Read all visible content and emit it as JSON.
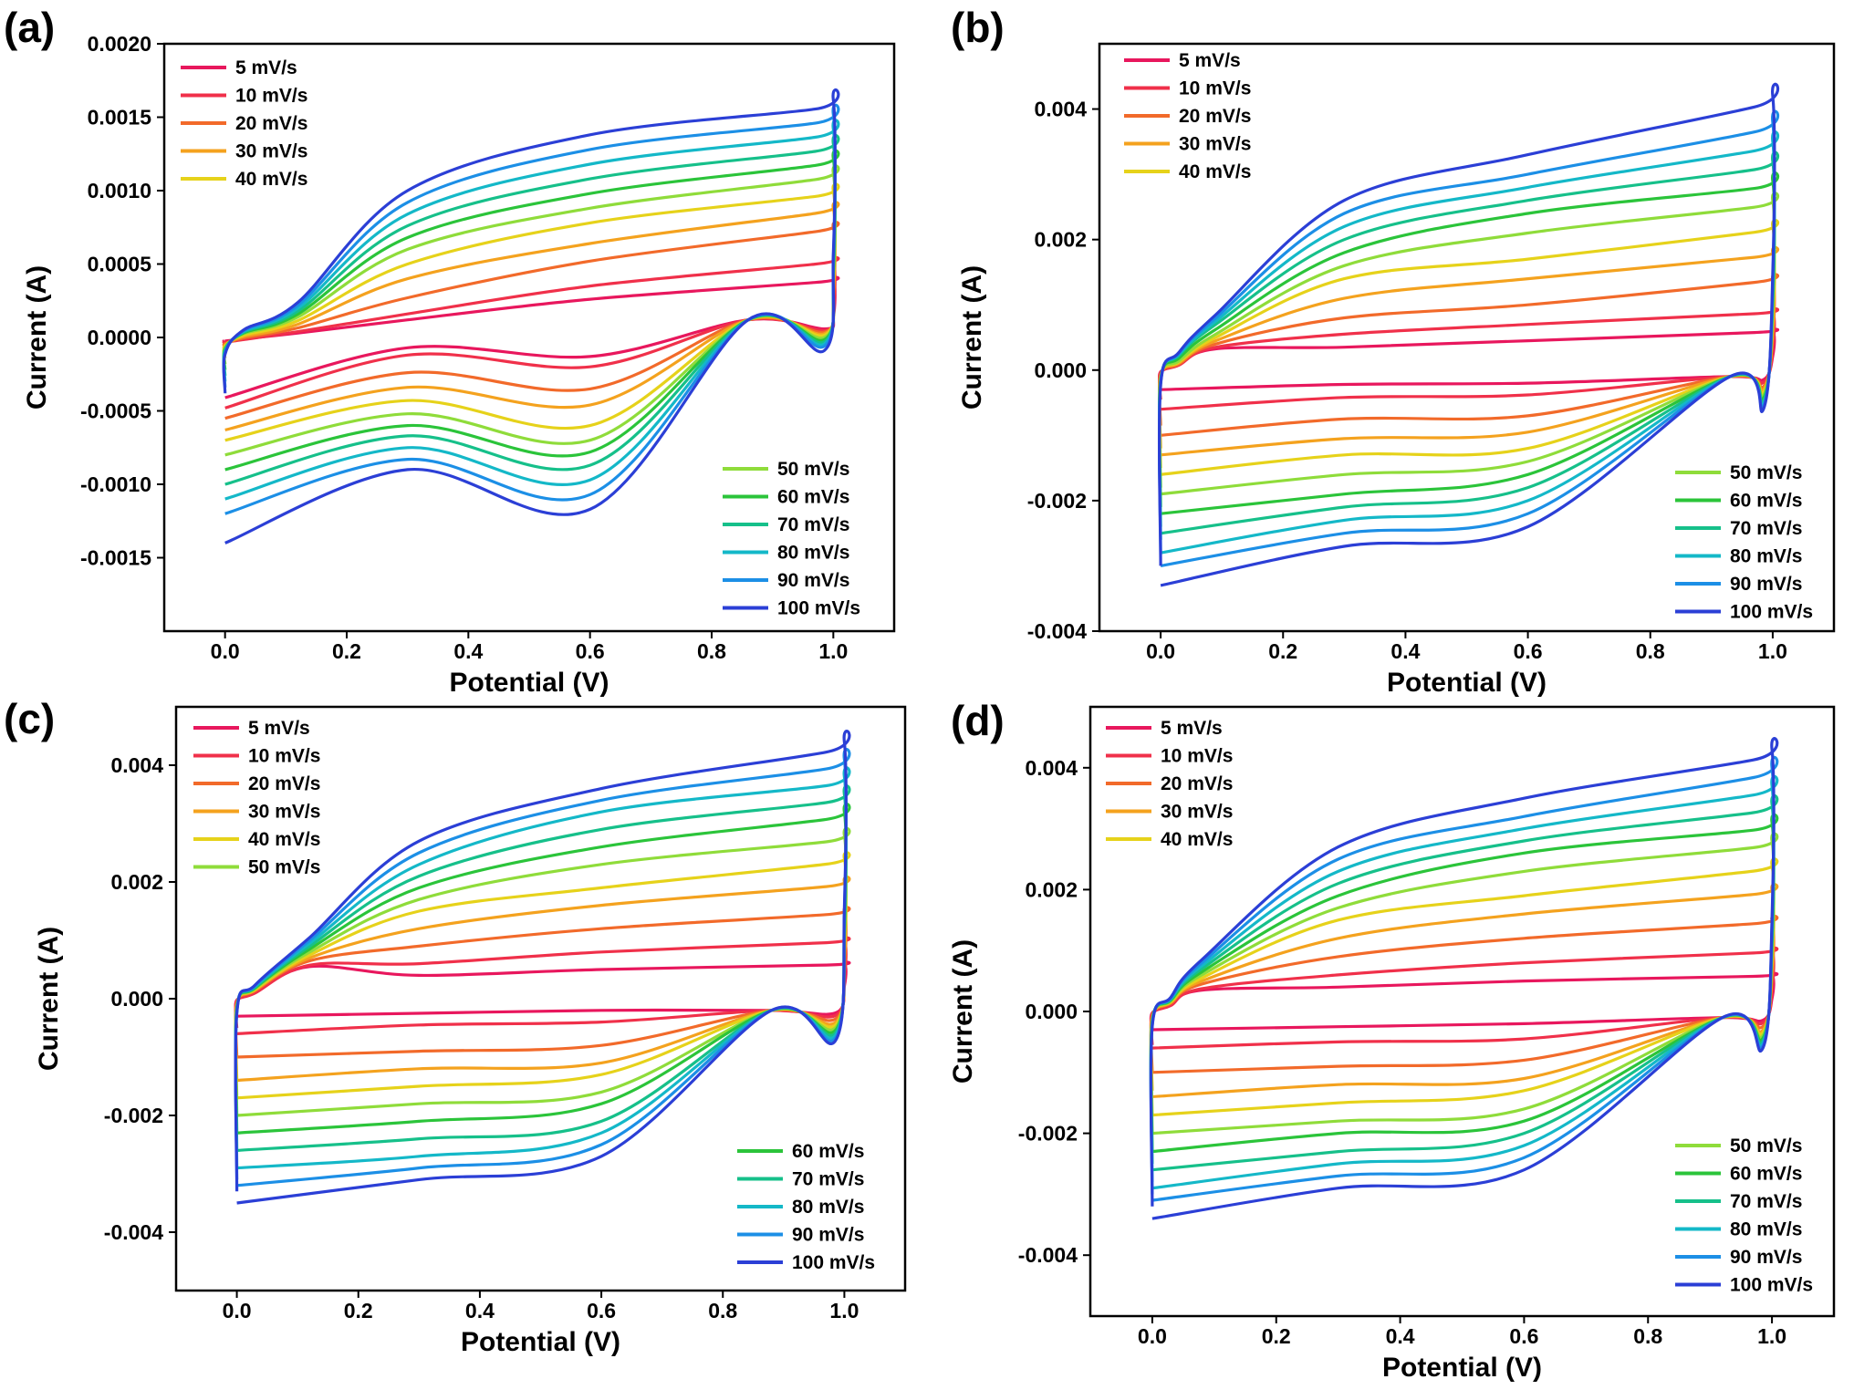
{
  "figure": {
    "panel_count": 4
  },
  "chart_data": [
    {
      "panel": "(a)",
      "type": "line",
      "title": "",
      "xlabel": "Potential (V)",
      "ylabel": "Current (A)",
      "xlim": [
        -0.1,
        1.1
      ],
      "ylim": [
        -0.002,
        0.002
      ],
      "xticks": [
        0.0,
        0.2,
        0.4,
        0.6,
        0.8,
        1.0
      ],
      "xtick_labels": [
        "0.0",
        "0.2",
        "0.4",
        "0.6",
        "0.8",
        "1.0"
      ],
      "yticks": [
        0.002,
        0.0015,
        0.001,
        0.0005,
        0.0,
        -0.0005,
        -0.001,
        -0.0015
      ],
      "ytick_labels": [
        "0.0020",
        "0.0015",
        "0.0010",
        "0.0005",
        "0.0000",
        "-0.0005",
        "-0.0010",
        "-0.0015"
      ],
      "legend_split": 5,
      "legend_placement": [
        "top-left",
        "bottom-right"
      ],
      "grid": false,
      "cross_points": {
        "x_low": 0.12,
        "y_low": 0.0,
        "x_high": 0.86,
        "y_high": 0.00012
      },
      "series": [
        {
          "name": "5 mV/s",
          "color": "#e8175d",
          "anodic": [
            6e-05,
            0.00012,
            0.00026,
            0.00039
          ],
          "cathodic": [
            -2e-05,
            -7e-05,
            -0.00013,
            -0.00041
          ]
        },
        {
          "name": "10 mV/s",
          "color": "#f0304a",
          "anodic": [
            8e-05,
            0.00016,
            0.00035,
            0.00052
          ],
          "cathodic": [
            -3e-05,
            -0.00012,
            -0.0002,
            -0.00048
          ]
        },
        {
          "name": "20 mV/s",
          "color": "#f26a2a",
          "anodic": [
            0.00013,
            0.00027,
            0.00052,
            0.00075
          ],
          "cathodic": [
            -6e-05,
            -0.00024,
            -0.00035,
            -0.00055
          ]
        },
        {
          "name": "30 mV/s",
          "color": "#f4a21e",
          "anodic": [
            0.00018,
            0.0004,
            0.00064,
            0.00088
          ],
          "cathodic": [
            -0.0001,
            -0.00034,
            -0.00046,
            -0.00063
          ]
        },
        {
          "name": "40 mV/s",
          "color": "#e6d21a",
          "anodic": [
            0.00023,
            0.0005,
            0.00078,
            0.001
          ],
          "cathodic": [
            -0.00014,
            -0.00043,
            -0.0006,
            -0.0007
          ]
        },
        {
          "name": "50 mV/s",
          "color": "#8fdc3a",
          "anodic": [
            0.00028,
            0.0006,
            0.00088,
            0.00112
          ],
          "cathodic": [
            -0.00018,
            -0.00052,
            -0.0007,
            -0.0008
          ]
        },
        {
          "name": "60 mV/s",
          "color": "#2bc43a",
          "anodic": [
            0.00032,
            0.00068,
            0.00098,
            0.00122
          ],
          "cathodic": [
            -0.00022,
            -0.0006,
            -0.00078,
            -0.0009
          ]
        },
        {
          "name": "70 mV/s",
          "color": "#16c08a",
          "anodic": [
            0.00036,
            0.00076,
            0.00108,
            0.00132
          ],
          "cathodic": [
            -0.00026,
            -0.00067,
            -0.00087,
            -0.001
          ]
        },
        {
          "name": "80 mV/s",
          "color": "#14b8c8",
          "anodic": [
            0.0004,
            0.00084,
            0.00118,
            0.00142
          ],
          "cathodic": [
            -0.0003,
            -0.00075,
            -0.00097,
            -0.0011
          ]
        },
        {
          "name": "90 mV/s",
          "color": "#1c8fe6",
          "anodic": [
            0.00044,
            0.00092,
            0.00128,
            0.00152
          ],
          "cathodic": [
            -0.00034,
            -0.00083,
            -0.00107,
            -0.0012
          ]
        },
        {
          "name": "100 mV/s",
          "color": "#2b3fd6",
          "anodic": [
            0.00048,
            0.001,
            0.00138,
            0.00162
          ],
          "cathodic": [
            -0.00038,
            -0.0009,
            -0.00117,
            -0.0014
          ]
        }
      ]
    },
    {
      "panel": "(b)",
      "type": "line",
      "title": "",
      "xlabel": "Potential (V)",
      "ylabel": "Current (A)",
      "xlim": [
        -0.1,
        1.1
      ],
      "ylim": [
        -0.004,
        0.005
      ],
      "xticks": [
        0.0,
        0.2,
        0.4,
        0.6,
        0.8,
        1.0
      ],
      "xtick_labels": [
        "0.0",
        "0.2",
        "0.4",
        "0.6",
        "0.8",
        "1.0"
      ],
      "yticks": [
        0.004,
        0.002,
        0.0,
        -0.002,
        -0.004
      ],
      "ytick_labels": [
        "0.004",
        "0.002",
        "0.000",
        "-0.002",
        "-0.004"
      ],
      "legend_split": 5,
      "legend_placement": [
        "top-left",
        "bottom-right"
      ],
      "grid": false,
      "cross_points": {
        "x_low": 0.09,
        "y_low": 0.0002,
        "x_high": 0.93,
        "y_high": -0.0001
      },
      "series": [
        {
          "name": "5 mV/s",
          "color": "#e8175d",
          "anodic": [
            0.00025,
            0.00035,
            0.00045,
            0.0006
          ],
          "cathodic": [
            -0.00025,
            -0.00022,
            -0.0002,
            -0.0003
          ]
        },
        {
          "name": "10 mV/s",
          "color": "#f0304a",
          "anodic": [
            0.0003,
            0.00055,
            0.0007,
            0.0009
          ],
          "cathodic": [
            -0.00045,
            -0.00042,
            -0.00038,
            -0.0006
          ]
        },
        {
          "name": "20 mV/s",
          "color": "#f26a2a",
          "anodic": [
            0.0004,
            0.0008,
            0.001,
            0.0014
          ],
          "cathodic": [
            -0.00085,
            -0.00075,
            -0.0007,
            -0.001
          ]
        },
        {
          "name": "30 mV/s",
          "color": "#f4a21e",
          "anodic": [
            0.0005,
            0.0011,
            0.0014,
            0.0018
          ],
          "cathodic": [
            -0.0012,
            -0.00105,
            -0.00095,
            -0.0013
          ]
        },
        {
          "name": "40 mV/s",
          "color": "#e6d21a",
          "anodic": [
            0.0006,
            0.0014,
            0.0017,
            0.0022
          ],
          "cathodic": [
            -0.0015,
            -0.0013,
            -0.0012,
            -0.0016
          ]
        },
        {
          "name": "50 mV/s",
          "color": "#8fdc3a",
          "anodic": [
            0.0007,
            0.0016,
            0.0021,
            0.0026
          ],
          "cathodic": [
            -0.0018,
            -0.0016,
            -0.0014,
            -0.0019
          ]
        },
        {
          "name": "60 mV/s",
          "color": "#2bc43a",
          "anodic": [
            0.00085,
            0.0018,
            0.0024,
            0.0029
          ],
          "cathodic": [
            -0.0021,
            -0.0019,
            -0.0016,
            -0.0022
          ]
        },
        {
          "name": "70 mV/s",
          "color": "#16c08a",
          "anodic": [
            0.001,
            0.002,
            0.0026,
            0.0032
          ],
          "cathodic": [
            -0.0024,
            -0.0021,
            -0.0018,
            -0.0025
          ]
        },
        {
          "name": "80 mV/s",
          "color": "#14b8c8",
          "anodic": [
            0.0011,
            0.0022,
            0.0028,
            0.0035
          ],
          "cathodic": [
            -0.0026,
            -0.0023,
            -0.002,
            -0.0028
          ]
        },
        {
          "name": "90 mV/s",
          "color": "#1c8fe6",
          "anodic": [
            0.0012,
            0.0024,
            0.003,
            0.0038
          ],
          "cathodic": [
            -0.0028,
            -0.0025,
            -0.0022,
            -0.003
          ]
        },
        {
          "name": "100 mV/s",
          "color": "#2b3fd6",
          "anodic": [
            0.0013,
            0.0026,
            0.0033,
            0.0042
          ],
          "cathodic": [
            -0.003,
            -0.0027,
            -0.0024,
            -0.0033
          ]
        }
      ]
    },
    {
      "panel": "(c)",
      "type": "line",
      "title": "",
      "xlabel": "Potential (V)",
      "ylabel": "Current (A)",
      "xlim": [
        -0.1,
        1.1
      ],
      "ylim": [
        -0.005,
        0.005
      ],
      "xticks": [
        0.0,
        0.2,
        0.4,
        0.6,
        0.8,
        1.0
      ],
      "xtick_labels": [
        "0.0",
        "0.2",
        "0.4",
        "0.6",
        "0.8",
        "1.0"
      ],
      "yticks": [
        0.004,
        0.002,
        0.0,
        -0.002,
        -0.004
      ],
      "ytick_labels": [
        "0.004",
        "0.002",
        "0.000",
        "-0.002",
        "-0.004"
      ],
      "legend_split": 6,
      "legend_placement": [
        "top-left",
        "bottom-right"
      ],
      "grid": false,
      "cross_points": {
        "x_low": 0.12,
        "y_low": 0.0004,
        "x_high": 0.88,
        "y_high": -0.0002
      },
      "series": [
        {
          "name": "5 mV/s",
          "color": "#e8175d",
          "anodic": [
            0.0003,
            0.0004,
            0.0005,
            0.0006
          ],
          "cathodic": [
            -0.0003,
            -0.00025,
            -0.0002,
            -0.0003
          ]
        },
        {
          "name": "10 mV/s",
          "color": "#f0304a",
          "anodic": [
            0.00035,
            0.0006,
            0.0008,
            0.001
          ],
          "cathodic": [
            -0.0005,
            -0.00045,
            -0.0004,
            -0.0006
          ]
        },
        {
          "name": "20 mV/s",
          "color": "#f26a2a",
          "anodic": [
            0.0005,
            0.0009,
            0.0012,
            0.0015
          ],
          "cathodic": [
            -0.001,
            -0.0009,
            -0.0008,
            -0.001
          ]
        },
        {
          "name": "30 mV/s",
          "color": "#f4a21e",
          "anodic": [
            0.0006,
            0.0012,
            0.0016,
            0.002
          ],
          "cathodic": [
            -0.0014,
            -0.0012,
            -0.0011,
            -0.0014
          ]
        },
        {
          "name": "40 mV/s",
          "color": "#e6d21a",
          "anodic": [
            0.0007,
            0.0015,
            0.0019,
            0.0024
          ],
          "cathodic": [
            -0.0017,
            -0.0015,
            -0.0013,
            -0.0017
          ]
        },
        {
          "name": "50 mV/s",
          "color": "#8fdc3a",
          "anodic": [
            0.0008,
            0.0017,
            0.0023,
            0.0028
          ],
          "cathodic": [
            -0.002,
            -0.0018,
            -0.0016,
            -0.002
          ]
        },
        {
          "name": "60 mV/s",
          "color": "#2bc43a",
          "anodic": [
            0.0009,
            0.0019,
            0.0026,
            0.0032
          ],
          "cathodic": [
            -0.0023,
            -0.0021,
            -0.0018,
            -0.0023
          ]
        },
        {
          "name": "70 mV/s",
          "color": "#16c08a",
          "anodic": [
            0.001,
            0.0021,
            0.0029,
            0.0035
          ],
          "cathodic": [
            -0.0026,
            -0.0024,
            -0.0021,
            -0.0026
          ]
        },
        {
          "name": "80 mV/s",
          "color": "#14b8c8",
          "anodic": [
            0.0011,
            0.0023,
            0.0032,
            0.0038
          ],
          "cathodic": [
            -0.0029,
            -0.0027,
            -0.0023,
            -0.0029
          ]
        },
        {
          "name": "90 mV/s",
          "color": "#1c8fe6",
          "anodic": [
            0.0012,
            0.0025,
            0.0034,
            0.0041
          ],
          "cathodic": [
            -0.0031,
            -0.0029,
            -0.0025,
            -0.0032
          ]
        },
        {
          "name": "100 mV/s",
          "color": "#2b3fd6",
          "anodic": [
            0.0013,
            0.0027,
            0.0036,
            0.0044
          ],
          "cathodic": [
            -0.0033,
            -0.0031,
            -0.0027,
            -0.0035
          ]
        }
      ]
    },
    {
      "panel": "(d)",
      "type": "line",
      "title": "",
      "xlabel": "Potential (V)",
      "ylabel": "Current (A)",
      "xlim": [
        -0.1,
        1.1
      ],
      "ylim": [
        -0.005,
        0.005
      ],
      "xticks": [
        0.0,
        0.2,
        0.4,
        0.6,
        0.8,
        1.0
      ],
      "xtick_labels": [
        "0.0",
        "0.2",
        "0.4",
        "0.6",
        "0.8",
        "1.0"
      ],
      "yticks": [
        0.004,
        0.002,
        0.0,
        -0.002,
        -0.004
      ],
      "ytick_labels": [
        "0.004",
        "0.002",
        "0.000",
        "-0.002",
        "-0.004"
      ],
      "legend_split": 5,
      "legend_placement": [
        "top-left",
        "bottom-right"
      ],
      "grid": false,
      "cross_points": {
        "x_low": 0.08,
        "y_low": 0.0002,
        "x_high": 0.92,
        "y_high": -0.0001
      },
      "series": [
        {
          "name": "5 mV/s",
          "color": "#e8175d",
          "anodic": [
            0.0003,
            0.0004,
            0.0005,
            0.0006
          ],
          "cathodic": [
            -0.0003,
            -0.00025,
            -0.0002,
            -0.0003
          ]
        },
        {
          "name": "10 mV/s",
          "color": "#f0304a",
          "anodic": [
            0.00035,
            0.0006,
            0.0008,
            0.001
          ],
          "cathodic": [
            -0.00055,
            -0.0005,
            -0.00045,
            -0.0006
          ]
        },
        {
          "name": "20 mV/s",
          "color": "#f26a2a",
          "anodic": [
            0.0005,
            0.0009,
            0.0012,
            0.0015
          ],
          "cathodic": [
            -0.001,
            -0.0009,
            -0.0008,
            -0.001
          ]
        },
        {
          "name": "30 mV/s",
          "color": "#f4a21e",
          "anodic": [
            0.0006,
            0.0012,
            0.0016,
            0.002
          ],
          "cathodic": [
            -0.0013,
            -0.0012,
            -0.0011,
            -0.0014
          ]
        },
        {
          "name": "40 mV/s",
          "color": "#e6d21a",
          "anodic": [
            0.0007,
            0.0015,
            0.0019,
            0.0024
          ],
          "cathodic": [
            -0.0017,
            -0.0015,
            -0.0013,
            -0.0017
          ]
        },
        {
          "name": "50 mV/s",
          "color": "#8fdc3a",
          "anodic": [
            0.0008,
            0.0017,
            0.0023,
            0.0028
          ],
          "cathodic": [
            -0.002,
            -0.0018,
            -0.0016,
            -0.002
          ]
        },
        {
          "name": "60 mV/s",
          "color": "#2bc43a",
          "anodic": [
            0.0009,
            0.0019,
            0.0026,
            0.0031
          ],
          "cathodic": [
            -0.0023,
            -0.002,
            -0.0018,
            -0.0023
          ]
        },
        {
          "name": "70 mV/s",
          "color": "#16c08a",
          "anodic": [
            0.001,
            0.0021,
            0.0028,
            0.0034
          ],
          "cathodic": [
            -0.0025,
            -0.0023,
            -0.002,
            -0.0026
          ]
        },
        {
          "name": "80 mV/s",
          "color": "#14b8c8",
          "anodic": [
            0.0011,
            0.0023,
            0.003,
            0.0037
          ],
          "cathodic": [
            -0.0028,
            -0.0025,
            -0.0022,
            -0.0029
          ]
        },
        {
          "name": "90 mV/s",
          "color": "#1c8fe6",
          "anodic": [
            0.0012,
            0.0025,
            0.0032,
            0.004
          ],
          "cathodic": [
            -0.003,
            -0.0027,
            -0.0024,
            -0.0031
          ]
        },
        {
          "name": "100 mV/s",
          "color": "#2b3fd6",
          "anodic": [
            0.0013,
            0.0027,
            0.0035,
            0.0043
          ],
          "cathodic": [
            -0.0032,
            -0.0029,
            -0.0026,
            -0.0034
          ]
        }
      ]
    }
  ]
}
